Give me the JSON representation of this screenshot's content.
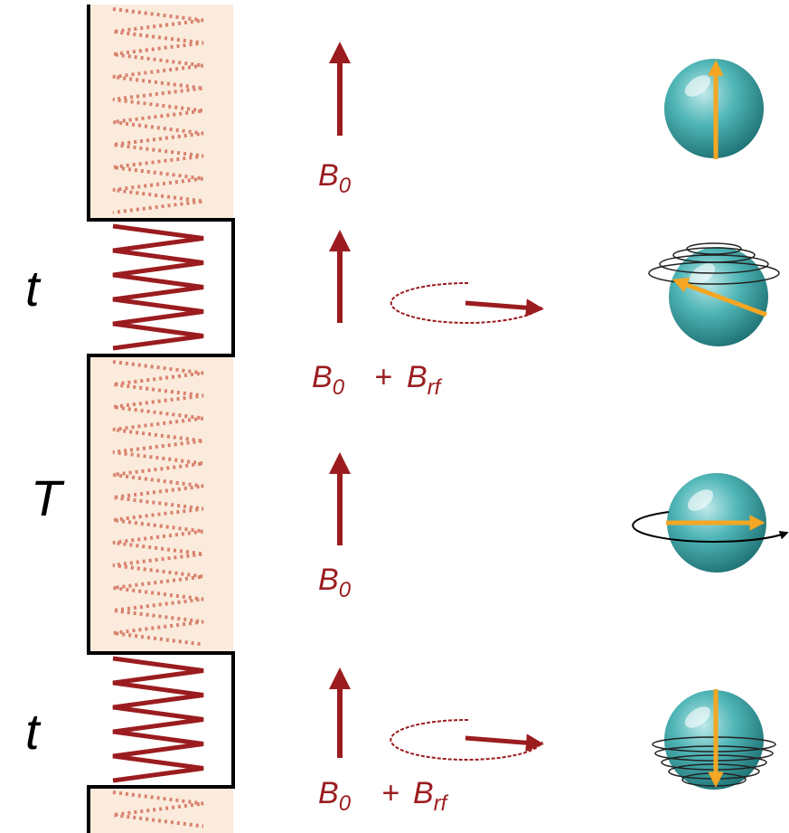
{
  "pulse_labels": [
    "t",
    "T",
    "t"
  ],
  "fields": [
    {
      "terms": [
        {
          "symbol": "B",
          "subscript": "0"
        }
      ]
    },
    {
      "terms": [
        {
          "symbol": "B",
          "subscript": "0"
        },
        {
          "symbol": "B",
          "subscript": "rf"
        }
      ],
      "operator": "+"
    },
    {
      "terms": [
        {
          "symbol": "B",
          "subscript": "0"
        }
      ]
    },
    {
      "terms": [
        {
          "symbol": "B",
          "subscript": "0"
        },
        {
          "symbol": "B",
          "subscript": "rf"
        }
      ],
      "operator": "+"
    }
  ]
}
